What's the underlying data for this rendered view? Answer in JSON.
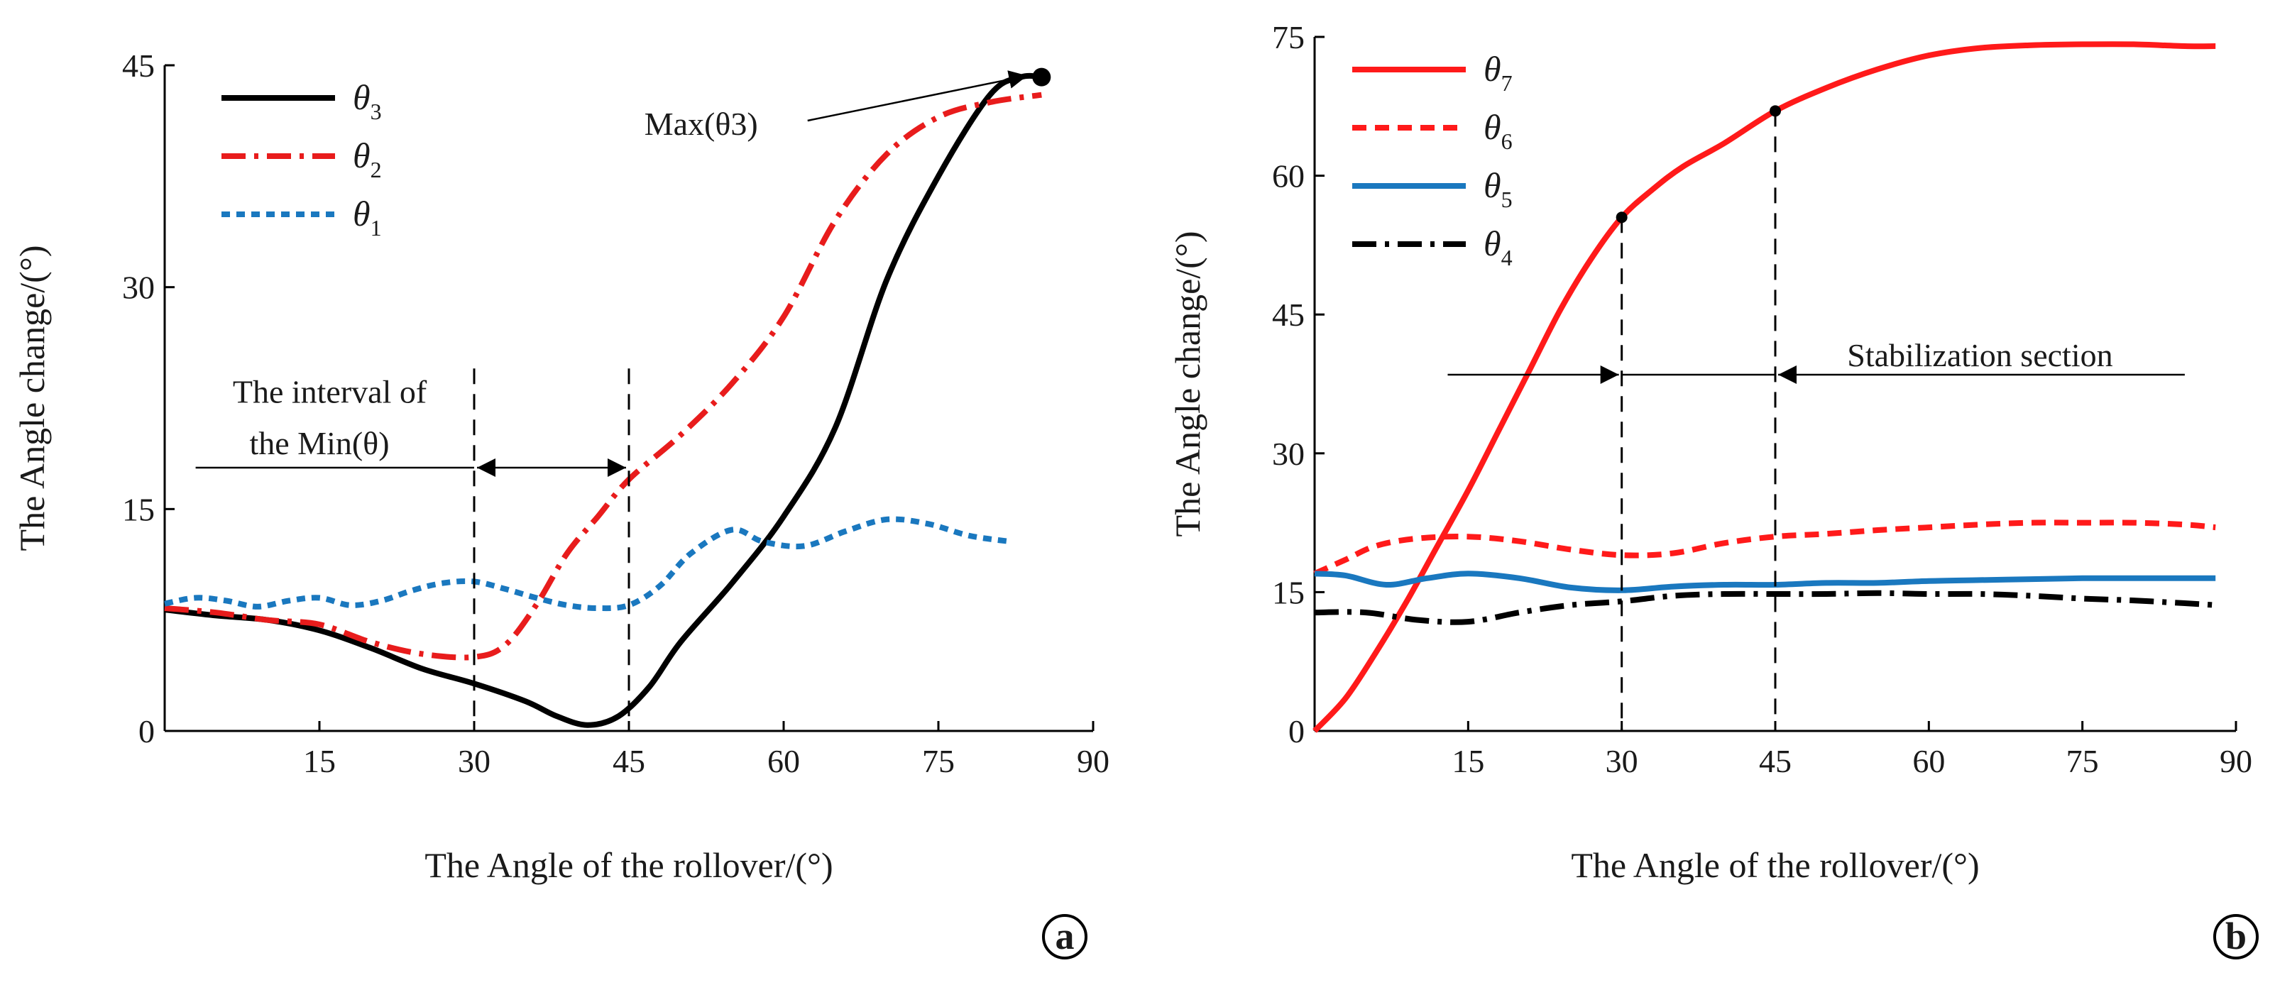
{
  "chart_data": [
    {
      "type": "line",
      "panel": "a",
      "xlabel": "The Angle of the rollover/(°)",
      "ylabel": "The Angle change/(°)",
      "xlim": [
        0,
        90
      ],
      "ylim": [
        0,
        45
      ],
      "xticks": [
        15,
        30,
        45,
        60,
        75,
        90
      ],
      "yticks": [
        0,
        15,
        30,
        45
      ],
      "legend_position": "top-left",
      "series": [
        {
          "name": "θ3",
          "sym": "θ",
          "sub": "3",
          "color": "#000000",
          "style": "solid",
          "x": [
            0,
            5,
            10,
            15,
            20,
            25,
            30,
            35,
            38,
            41,
            44,
            47,
            50,
            55,
            60,
            65,
            70,
            75,
            80,
            83,
            85
          ],
          "y": [
            8.2,
            7.8,
            7.5,
            6.8,
            5.6,
            4.2,
            3.2,
            2.0,
            1.0,
            0.4,
            1.0,
            3.0,
            6.0,
            10.0,
            14.5,
            20.5,
            30.5,
            37.5,
            43.0,
            44.2,
            44.2
          ]
        },
        {
          "name": "θ2",
          "sym": "θ",
          "sub": "2",
          "color": "#e81c1c",
          "style": "dashdot",
          "x": [
            0,
            5,
            10,
            15,
            20,
            25,
            30,
            33,
            36,
            39,
            42,
            45,
            50,
            55,
            60,
            65,
            70,
            75,
            80,
            85
          ],
          "y": [
            8.3,
            8.0,
            7.5,
            7.2,
            6.0,
            5.2,
            5.0,
            5.8,
            8.5,
            12.0,
            14.5,
            17.0,
            20.0,
            23.5,
            28.0,
            34.5,
            39.0,
            41.5,
            42.5,
            43.0
          ]
        },
        {
          "name": "θ1",
          "sym": "θ",
          "sub": "1",
          "color": "#1a78bf",
          "style": "dotted",
          "x": [
            0,
            3,
            6,
            9,
            12,
            15,
            18,
            21,
            24,
            27,
            30,
            33,
            36,
            39,
            42,
            45,
            48,
            51,
            55,
            58,
            62,
            66,
            70,
            74,
            78,
            82
          ],
          "y": [
            8.6,
            9.0,
            8.8,
            8.4,
            8.8,
            9.0,
            8.5,
            8.8,
            9.5,
            10.0,
            10.1,
            9.6,
            9.0,
            8.5,
            8.3,
            8.5,
            9.8,
            12.0,
            13.6,
            12.8,
            12.5,
            13.5,
            14.3,
            14.0,
            13.2,
            12.8
          ]
        }
      ],
      "annotations": {
        "max_label": "Max(θ3)",
        "max_point": {
          "x": 85,
          "y": 44.2
        },
        "max_label_pos": {
          "x": 52,
          "y": 40.3
        },
        "interval_line1": "The interval of",
        "interval_line2": "the Min(θ)",
        "interval_bounds": [
          30,
          45
        ],
        "interval_y": 17.8
      },
      "panel_label": "a"
    },
    {
      "type": "line",
      "panel": "b",
      "xlabel": "The Angle of the rollover/(°)",
      "ylabel": "The Angle change/(°)",
      "xlim": [
        0,
        90
      ],
      "ylim": [
        0,
        75
      ],
      "xticks": [
        15,
        30,
        45,
        60,
        75,
        90
      ],
      "yticks": [
        0,
        15,
        30,
        45,
        60,
        75
      ],
      "legend_position": "top-left",
      "series": [
        {
          "name": "θ7",
          "sym": "θ",
          "sub": "7",
          "color": "#ff1a1a",
          "style": "solid",
          "x": [
            0,
            3,
            6,
            9,
            12,
            15,
            18,
            21,
            24,
            27,
            30,
            33,
            36,
            40,
            45,
            50,
            55,
            60,
            65,
            70,
            75,
            80,
            85,
            88
          ],
          "y": [
            0,
            3.5,
            8.5,
            14.0,
            20.0,
            26.0,
            32.5,
            39.0,
            45.5,
            51.0,
            55.5,
            58.5,
            61.0,
            63.5,
            67.0,
            69.5,
            71.5,
            73.0,
            73.8,
            74.1,
            74.2,
            74.2,
            74.0,
            74.0
          ]
        },
        {
          "name": "θ6",
          "sym": "θ",
          "sub": "6",
          "color": "#ff1a1a",
          "style": "dashed",
          "x": [
            0,
            3,
            6,
            10,
            15,
            20,
            25,
            30,
            35,
            40,
            45,
            50,
            55,
            60,
            65,
            70,
            75,
            80,
            85,
            88
          ],
          "y": [
            17.0,
            18.5,
            20.0,
            20.8,
            21.0,
            20.5,
            19.6,
            19.0,
            19.2,
            20.3,
            21.0,
            21.3,
            21.7,
            22.0,
            22.3,
            22.5,
            22.5,
            22.5,
            22.3,
            22.0
          ]
        },
        {
          "name": "θ5",
          "sym": "θ",
          "sub": "5",
          "color": "#1a78bf",
          "style": "solid",
          "x": [
            0,
            3,
            7,
            11,
            15,
            20,
            25,
            30,
            35,
            40,
            45,
            50,
            55,
            60,
            65,
            70,
            75,
            80,
            85,
            88
          ],
          "y": [
            17.0,
            16.8,
            15.8,
            16.5,
            17.0,
            16.5,
            15.5,
            15.2,
            15.6,
            15.8,
            15.8,
            16.0,
            16.0,
            16.2,
            16.3,
            16.4,
            16.5,
            16.5,
            16.5,
            16.5
          ]
        },
        {
          "name": "θ4",
          "sym": "θ",
          "sub": "4",
          "color": "#000000",
          "style": "dashdot",
          "x": [
            0,
            5,
            10,
            15,
            20,
            25,
            30,
            35,
            40,
            45,
            50,
            55,
            60,
            65,
            70,
            75,
            80,
            85,
            88
          ],
          "y": [
            12.8,
            12.8,
            12.0,
            11.8,
            12.8,
            13.6,
            14.0,
            14.6,
            14.8,
            14.8,
            14.8,
            14.9,
            14.8,
            14.8,
            14.6,
            14.3,
            14.1,
            13.8,
            13.6
          ]
        }
      ],
      "annotations": {
        "stab_label": "Stabilization section",
        "stab_bounds": [
          30,
          45
        ],
        "stab_y": 38.5,
        "stab_left_end": 13,
        "stab_right_end": 85,
        "markers": [
          {
            "x": 30,
            "y": 55.5
          },
          {
            "x": 45,
            "y": 67.0
          }
        ]
      },
      "panel_label": "b"
    }
  ]
}
